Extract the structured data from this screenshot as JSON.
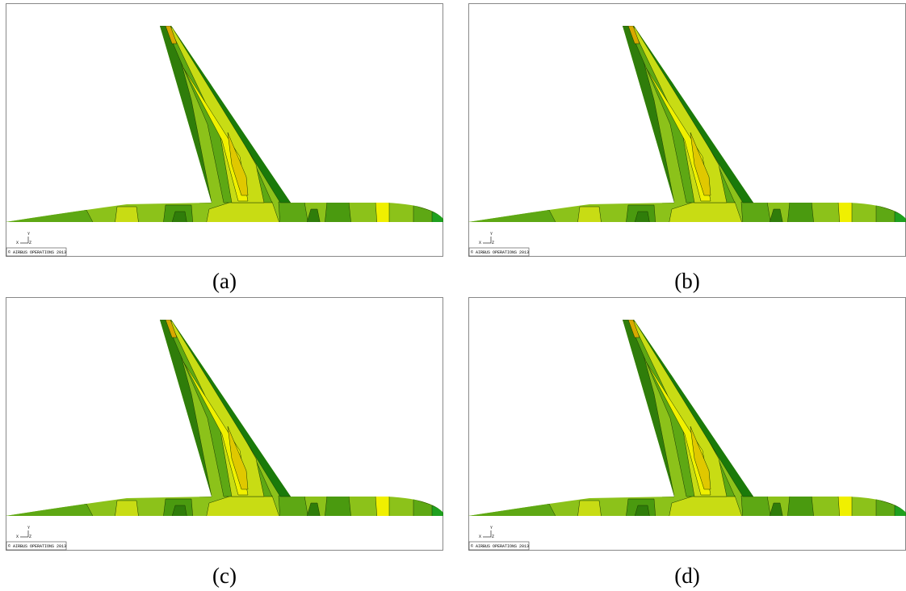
{
  "panels": [
    {
      "caption": "(a)",
      "copyright": "© AIRBUS OPERATIONS 2013",
      "axis": {
        "y": "Y",
        "x": "X",
        "z": "Z"
      }
    },
    {
      "caption": "(b)",
      "copyright": "© AIRBUS OPERATIONS 2013",
      "axis": {
        "y": "Y",
        "x": "X",
        "z": "Z"
      }
    },
    {
      "caption": "(c)",
      "copyright": "© AIRBUS OPERATIONS 2013",
      "axis": {
        "y": "Y",
        "x": "X",
        "z": "Z"
      }
    },
    {
      "caption": "(d)",
      "copyright": "© AIRBUS OPERATIONS 2013",
      "axis": {
        "y": "Y",
        "x": "X",
        "z": "Z"
      }
    }
  ]
}
